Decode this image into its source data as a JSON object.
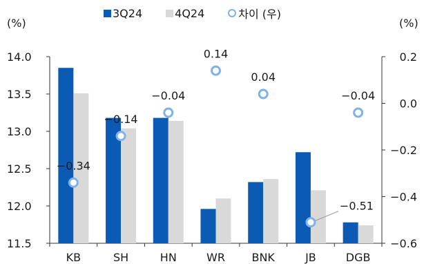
{
  "legend": {
    "series1": "3Q24",
    "series2": "4Q24",
    "series3": "차이 (우)"
  },
  "units": {
    "left": "(%)",
    "right": "(%)"
  },
  "colors": {
    "series1": "#0b5bb5",
    "series2": "#d9d9d9",
    "series3": "#7fb2ea"
  },
  "chart_data": {
    "type": "bar",
    "categories": [
      "KB",
      "SH",
      "HN",
      "WR",
      "BNK",
      "JB",
      "DGB"
    ],
    "series": [
      {
        "name": "3Q24",
        "values": [
          13.85,
          13.18,
          13.18,
          11.96,
          12.32,
          12.72,
          11.78
        ]
      },
      {
        "name": "4Q24",
        "values": [
          13.51,
          13.04,
          13.14,
          12.1,
          12.36,
          12.21,
          11.74
        ]
      },
      {
        "name": "차이 (우)",
        "type": "scatter",
        "axis": "right",
        "values": [
          -0.34,
          -0.14,
          -0.04,
          0.14,
          0.04,
          -0.51,
          -0.04
        ],
        "labels": [
          "−0.34",
          "−0.14",
          "−0.04",
          "0.14",
          "0.04",
          "−0.51",
          "−0.04"
        ]
      }
    ],
    "left_axis": {
      "ylim": [
        11.5,
        14.0
      ],
      "ticks": [
        "11.5",
        "12.0",
        "12.5",
        "13.0",
        "13.5",
        "14.0"
      ]
    },
    "right_axis": {
      "ylim": [
        -0.6,
        0.2
      ],
      "ticks": [
        "−0.6",
        "−0.4",
        "−0.2",
        "0.0",
        "0.2"
      ]
    },
    "grid": false,
    "legend_position": "top"
  }
}
